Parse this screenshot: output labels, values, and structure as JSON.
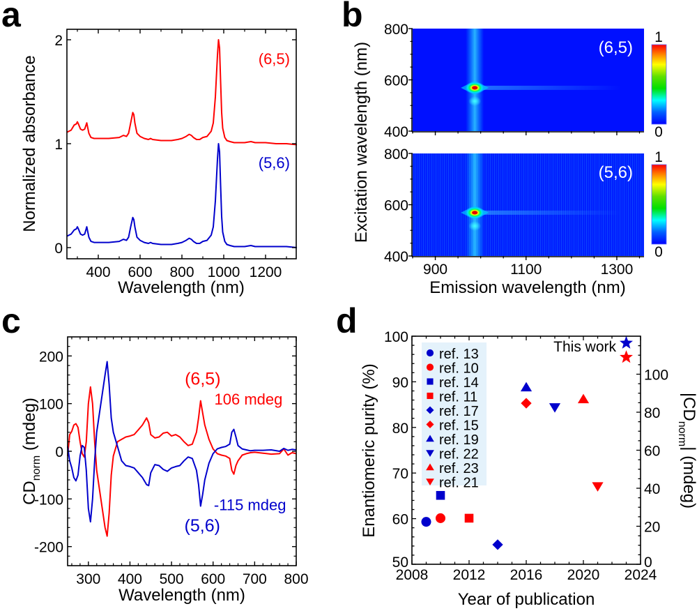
{
  "figure": {
    "panels": [
      "a",
      "b",
      "c",
      "d"
    ]
  },
  "colors": {
    "red": "#ff0000",
    "blue": "#0000cc",
    "legend_bg": "#e4f2fb",
    "heatmap_bg": "#0010ff"
  },
  "chart_data": [
    {
      "panel": "a",
      "type": "line",
      "title": "",
      "xlabel": "Wavelength (nm)",
      "ylabel": "Normalized absorbance",
      "xlim": [
        250,
        1350
      ],
      "ylim": [
        -0.1,
        2.1
      ],
      "xticks": [
        400,
        600,
        800,
        1000,
        1200
      ],
      "yticks": [
        0,
        1,
        2
      ],
      "annotations": [
        {
          "text": "(6,5)",
          "color": "red",
          "x": 1260,
          "y": 1.9
        },
        {
          "text": "(5,6)",
          "color": "blue",
          "x": 1260,
          "y": 0.9
        }
      ],
      "series": [
        {
          "name": "(6,5)",
          "color": "red",
          "x": [
            250,
            270,
            285,
            295,
            300,
            305,
            315,
            325,
            335,
            345,
            355,
            365,
            380,
            400,
            450,
            500,
            510,
            520,
            535,
            545,
            555,
            565,
            570,
            575,
            585,
            600,
            620,
            640,
            650,
            660,
            700,
            750,
            780,
            800,
            820,
            835,
            845,
            855,
            870,
            885,
            900,
            920,
            940,
            950,
            960,
            970,
            975,
            980,
            985,
            990,
            995,
            1005,
            1015,
            1030,
            1050,
            1080,
            1100,
            1130,
            1150,
            1200,
            1250,
            1300,
            1350
          ],
          "y": [
            1.11,
            1.13,
            1.18,
            1.19,
            1.21,
            1.19,
            1.14,
            1.13,
            1.14,
            1.2,
            1.1,
            1.06,
            1.05,
            1.05,
            1.05,
            1.06,
            1.07,
            1.08,
            1.07,
            1.1,
            1.2,
            1.3,
            1.28,
            1.2,
            1.1,
            1.07,
            1.05,
            1.04,
            1.05,
            1.04,
            1.03,
            1.03,
            1.04,
            1.05,
            1.07,
            1.09,
            1.08,
            1.06,
            1.04,
            1.04,
            1.06,
            1.07,
            1.12,
            1.2,
            1.45,
            1.85,
            2.0,
            1.92,
            1.6,
            1.3,
            1.15,
            1.06,
            1.03,
            1.02,
            1.01,
            1.01,
            1.01,
            1.02,
            1.01,
            1.01,
            1.0,
            1.0,
            0.99
          ]
        },
        {
          "name": "(5,6)",
          "color": "blue",
          "x": [
            250,
            270,
            285,
            295,
            300,
            305,
            315,
            325,
            335,
            345,
            355,
            365,
            380,
            400,
            450,
            500,
            510,
            520,
            535,
            545,
            555,
            565,
            570,
            575,
            585,
            600,
            620,
            640,
            650,
            660,
            700,
            750,
            780,
            800,
            820,
            835,
            845,
            855,
            870,
            885,
            900,
            920,
            940,
            950,
            960,
            970,
            975,
            980,
            985,
            990,
            995,
            1005,
            1015,
            1030,
            1050,
            1080,
            1100,
            1130,
            1150,
            1200,
            1250,
            1300,
            1350
          ],
          "y": [
            0.11,
            0.13,
            0.17,
            0.18,
            0.2,
            0.18,
            0.13,
            0.12,
            0.13,
            0.2,
            0.1,
            0.06,
            0.05,
            0.05,
            0.05,
            0.06,
            0.07,
            0.08,
            0.07,
            0.1,
            0.2,
            0.29,
            0.27,
            0.2,
            0.1,
            0.07,
            0.05,
            0.04,
            0.05,
            0.04,
            0.03,
            0.03,
            0.04,
            0.05,
            0.07,
            0.09,
            0.08,
            0.06,
            0.04,
            0.04,
            0.06,
            0.07,
            0.12,
            0.2,
            0.45,
            0.85,
            1.0,
            0.92,
            0.6,
            0.3,
            0.15,
            0.06,
            0.03,
            0.02,
            0.01,
            0.01,
            0.01,
            0.02,
            0.01,
            0.01,
            0.01,
            0.01,
            0.0
          ]
        }
      ]
    },
    {
      "panel": "b",
      "type": "heatmap",
      "xlabel": "Emission wavelength (nm)",
      "ylabel": "Excitation wavelength (nm)",
      "xlim": [
        850,
        1360
      ],
      "ylim": [
        400,
        800
      ],
      "xticks": [
        900,
        1100,
        1300
      ],
      "yticks": [
        400,
        600,
        800
      ],
      "colorbar": {
        "min_label": "0",
        "max_label": "1",
        "colormap": "rainbow"
      },
      "maps": [
        {
          "label": "(6,5)",
          "peak_emission_nm": 987,
          "peak_excitation_nm": 569,
          "secondary_excitation_nm": 517,
          "noisy_left_edge": false
        },
        {
          "label": "(5,6)",
          "peak_emission_nm": 987,
          "peak_excitation_nm": 569,
          "secondary_excitation_nm": 517,
          "noisy_left_edge": true
        }
      ]
    },
    {
      "panel": "c",
      "type": "line",
      "xlabel": "Wavelength (nm)",
      "ylabel_main": "CD",
      "ylabel_sub": "norm",
      "ylabel_units": " (mdeg)",
      "xlim": [
        250,
        800
      ],
      "ylim": [
        -240,
        240
      ],
      "xticks": [
        300,
        400,
        500,
        600,
        700,
        800
      ],
      "yticks": [
        -200,
        -100,
        0,
        100,
        200
      ],
      "annotations": [
        {
          "text": "(6,5)",
          "color": "red",
          "x": 575,
          "y": 140
        },
        {
          "text": "106 mdeg",
          "color": "red",
          "x": 603,
          "y": 98
        },
        {
          "text": "-115 mdeg",
          "color": "blue",
          "x": 602,
          "y": -124
        },
        {
          "text": "(5,6)",
          "color": "blue",
          "x": 574,
          "y": -168
        }
      ],
      "series": [
        {
          "name": "(6,5)",
          "color": "red",
          "x": [
            250,
            255,
            260,
            265,
            270,
            275,
            280,
            285,
            290,
            295,
            300,
            305,
            310,
            315,
            320,
            330,
            340,
            345,
            350,
            355,
            360,
            370,
            380,
            390,
            400,
            410,
            420,
            430,
            440,
            445,
            450,
            460,
            470,
            480,
            490,
            500,
            510,
            520,
            530,
            540,
            550,
            560,
            565,
            570,
            575,
            580,
            590,
            600,
            610,
            620,
            630,
            640,
            645,
            650,
            655,
            660,
            670,
            680,
            690,
            700,
            720,
            740,
            760,
            770,
            780,
            790,
            800
          ],
          "y": [
            -10,
            35,
            42,
            55,
            58,
            50,
            20,
            -5,
            -12,
            20,
            100,
            135,
            100,
            20,
            -40,
            -100,
            -160,
            -178,
            -130,
            -50,
            -10,
            20,
            25,
            30,
            32,
            35,
            45,
            55,
            70,
            60,
            35,
            28,
            30,
            38,
            40,
            32,
            35,
            30,
            20,
            12,
            15,
            40,
            70,
            106,
            80,
            55,
            25,
            5,
            -5,
            -8,
            -10,
            -15,
            -40,
            -48,
            -30,
            -20,
            -8,
            -5,
            -3,
            -2,
            -4,
            -6,
            -5,
            5,
            -8,
            -3,
            -5
          ]
        },
        {
          "name": "(5,6)",
          "color": "blue",
          "x": [
            250,
            255,
            260,
            265,
            270,
            275,
            280,
            285,
            290,
            295,
            300,
            305,
            310,
            315,
            320,
            330,
            340,
            345,
            350,
            355,
            360,
            370,
            380,
            390,
            400,
            410,
            420,
            430,
            440,
            445,
            450,
            460,
            470,
            480,
            490,
            500,
            510,
            520,
            530,
            540,
            550,
            560,
            565,
            570,
            575,
            580,
            590,
            600,
            610,
            620,
            630,
            640,
            645,
            650,
            655,
            660,
            670,
            680,
            690,
            700,
            720,
            740,
            760,
            770,
            780,
            790,
            800
          ],
          "y": [
            10,
            -20,
            -35,
            -55,
            -62,
            -50,
            -10,
            12,
            8,
            -40,
            -120,
            -148,
            -100,
            -20,
            40,
            100,
            160,
            188,
            140,
            70,
            40,
            10,
            -20,
            -30,
            -32,
            -35,
            -45,
            -55,
            -70,
            -72,
            -45,
            -28,
            -30,
            -38,
            -42,
            -35,
            -32,
            -30,
            -20,
            -12,
            -15,
            -40,
            -70,
            -115,
            -90,
            -60,
            -25,
            -5,
            5,
            8,
            10,
            15,
            40,
            46,
            30,
            12,
            5,
            3,
            1,
            2,
            2,
            3,
            0,
            6,
            2,
            4,
            3
          ]
        }
      ]
    },
    {
      "panel": "d",
      "type": "scatter",
      "xlabel": "Year of publication",
      "ylabel": "Enantiomeric purity (%)",
      "ylabel_right_main": "|CD",
      "ylabel_right_sub": "norm",
      "ylabel_right_units": "| (mdeg)",
      "xlim": [
        2008,
        2024
      ],
      "ylim": [
        50,
        100
      ],
      "ylim_right": [
        0,
        120
      ],
      "xticks": [
        2008,
        2012,
        2016,
        2020,
        2024
      ],
      "yticks": [
        50,
        60,
        70,
        80,
        90,
        100
      ],
      "yticks_right": [
        0,
        20,
        40,
        60,
        80,
        100
      ],
      "legend_position": "upper-left",
      "annotation": "This work",
      "points": [
        {
          "label": "ref. 13",
          "x": 2009,
          "y": 59.3,
          "marker": "circle",
          "color": "blue"
        },
        {
          "label": "ref. 10",
          "x": 2010,
          "y": 60.1,
          "marker": "circle",
          "color": "red"
        },
        {
          "label": "ref. 14",
          "x": 2010,
          "y": 65.1,
          "marker": "square",
          "color": "blue"
        },
        {
          "label": "ref. 11",
          "x": 2012,
          "y": 60.1,
          "marker": "square",
          "color": "red"
        },
        {
          "label": "ref. 17",
          "x": 2014,
          "y": 54.3,
          "marker": "diamond",
          "color": "blue"
        },
        {
          "label": "ref. 15",
          "x": 2016,
          "y": 85.3,
          "marker": "diamond",
          "color": "red"
        },
        {
          "label": "ref. 19",
          "x": 2016,
          "y": 88.8,
          "marker": "triangle-up",
          "color": "blue"
        },
        {
          "label": "ref. 22",
          "x": 2018,
          "y": 84.4,
          "marker": "triangle-down",
          "color": "blue"
        },
        {
          "label": "ref. 23",
          "x": 2020,
          "y": 86.2,
          "marker": "triangle-up",
          "color": "red"
        },
        {
          "label": "ref. 21",
          "x": 2021,
          "y": 67.1,
          "marker": "triangle-down",
          "color": "red"
        }
      ],
      "this_work": [
        {
          "x": 2023,
          "y": 98.5,
          "marker": "star",
          "color": "blue"
        },
        {
          "x": 2023,
          "y": 95.4,
          "marker": "star",
          "color": "red"
        }
      ]
    }
  ]
}
